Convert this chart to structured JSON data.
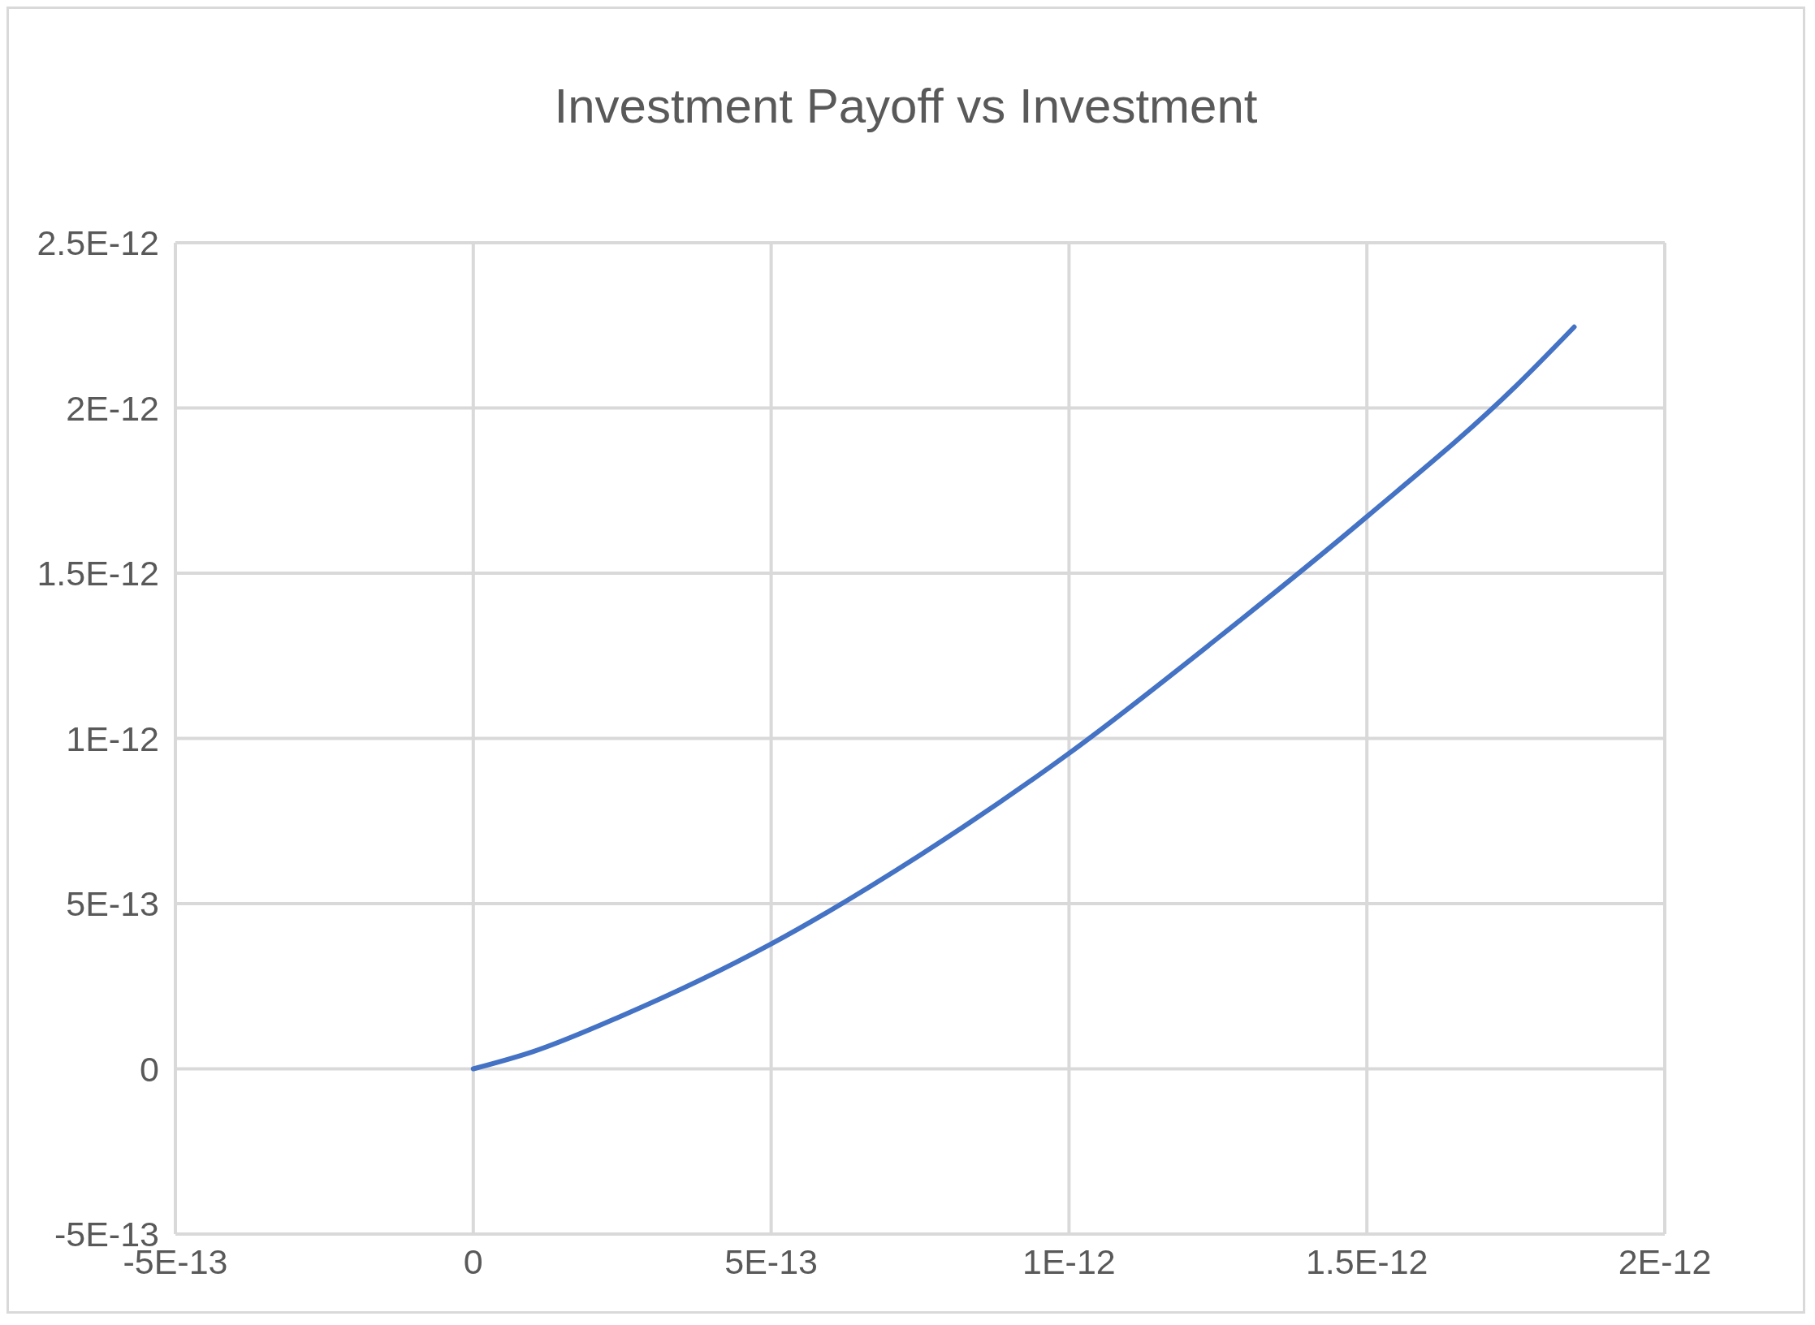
{
  "chart_data": {
    "type": "line",
    "title": "Investment Payoff  vs Investment",
    "x": [
      0,
      1e-13,
      2.5e-13,
      5e-13,
      7.5e-13,
      1e-12,
      1.25e-12,
      1.5e-12,
      1.75e-12,
      1.848e-12
    ],
    "series": [
      {
        "color": "#4472c4",
        "values": [
          0,
          5.2e-14,
          1.61e-13,
          3.78e-13,
          6.47e-13,
          9.55e-13,
          1.304e-12,
          1.671e-12,
          2.066e-12,
          2.245e-12
        ]
      }
    ],
    "xlim": [
      -5e-13,
      2e-12
    ],
    "xticks": [
      {
        "value": -5e-13,
        "label": "-5E-13"
      },
      {
        "value": 0,
        "label": "0"
      },
      {
        "value": 5e-13,
        "label": "5E-13"
      },
      {
        "value": 1e-12,
        "label": "1E-12"
      },
      {
        "value": 1.5e-12,
        "label": "1.5E-12"
      },
      {
        "value": 2e-12,
        "label": "2E-12"
      }
    ],
    "ylim": [
      -5e-13,
      2.5e-12
    ],
    "yticks": [
      {
        "value": -5e-13,
        "label": "-5E-13"
      },
      {
        "value": 0,
        "label": "0"
      },
      {
        "value": 5e-13,
        "label": "5E-13"
      },
      {
        "value": 1e-12,
        "label": "1E-12"
      },
      {
        "value": 1.5e-12,
        "label": "1.5E-12"
      },
      {
        "value": 2e-12,
        "label": "2E-12"
      },
      {
        "value": 2.5e-12,
        "label": "2.5E-12"
      }
    ],
    "grid": true
  }
}
